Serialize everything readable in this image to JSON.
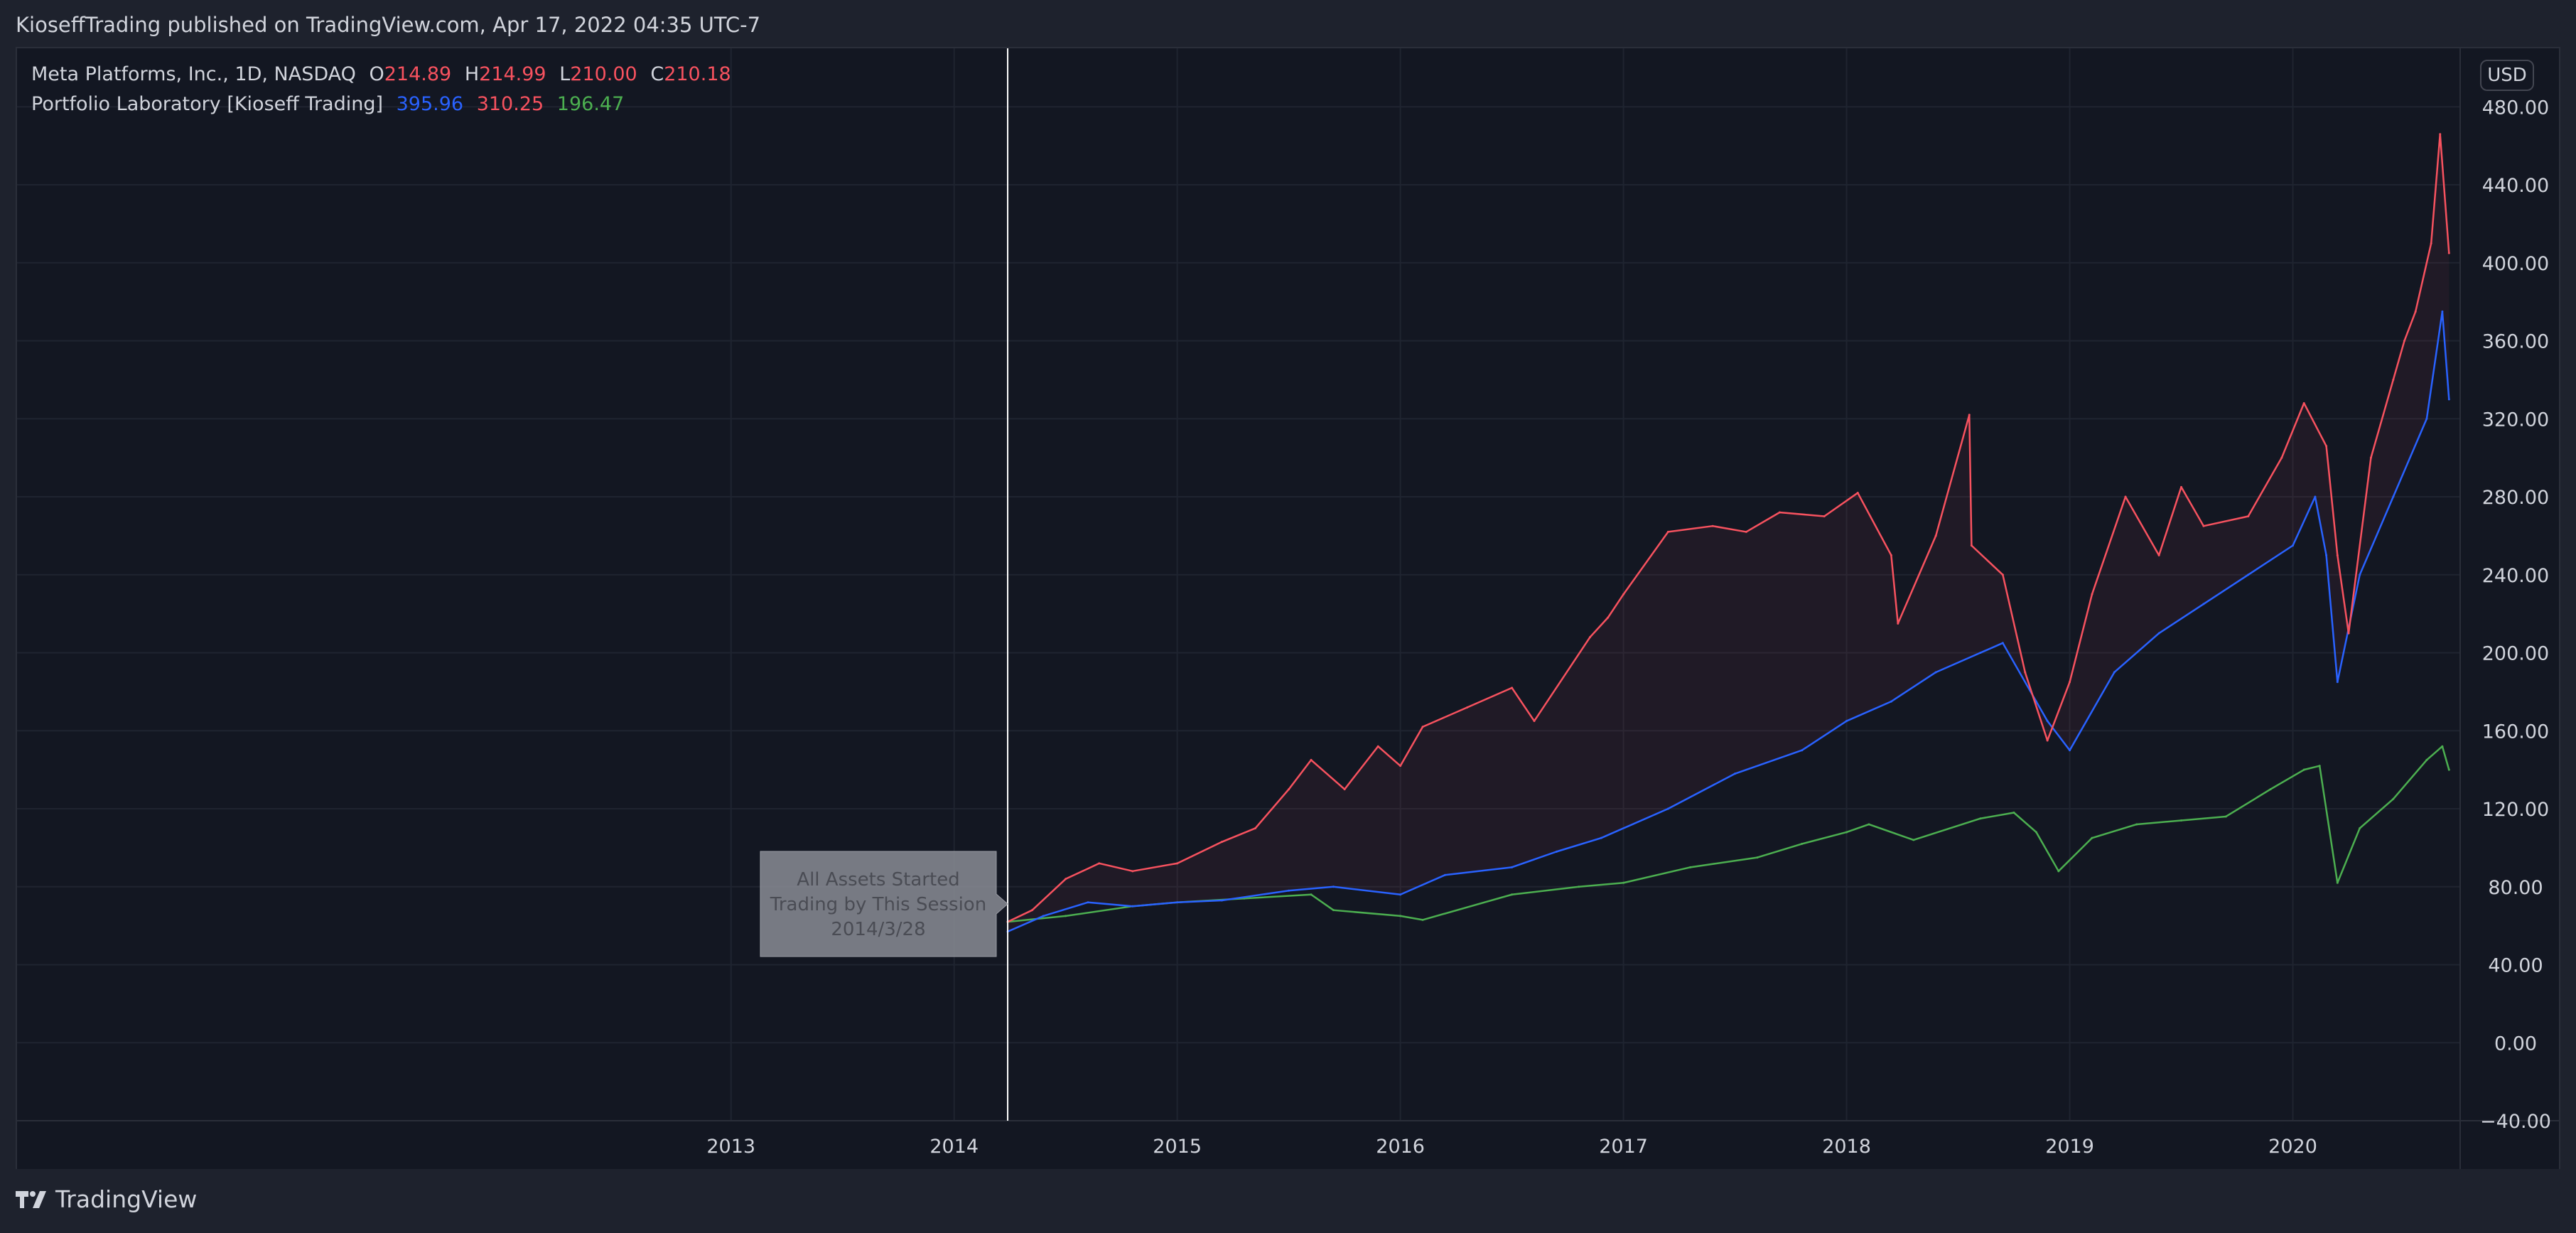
{
  "header": {
    "published_line": "KioseffTrading published on TradingView.com, Apr 17, 2022 04:35 UTC-7"
  },
  "legend": {
    "symbol_line": "Meta Platforms, Inc., 1D, NASDAQ",
    "open_label": "O",
    "open_value": "214.89",
    "high_label": "H",
    "high_value": "214.99",
    "low_label": "L",
    "low_value": "210.00",
    "close_label": "C",
    "close_value": "210.18",
    "indicator_name": "Portfolio Laboratory [Kioseff Trading]",
    "indicator_value_1": "395.96",
    "indicator_value_2": "310.25",
    "indicator_value_3": "196.47"
  },
  "currency_badge": "USD",
  "footer": {
    "brand": "TradingView"
  },
  "colors": {
    "background": "#131722",
    "grid": "#1f2430",
    "red_series": "#f7525f",
    "blue_series": "#2962ff",
    "green_series": "#4caf50",
    "vline": "#ffffff",
    "annotation_bg": "#8a8c94"
  },
  "chart_data": {
    "type": "line",
    "xlabel": "",
    "ylabel": "",
    "ylim": [
      -40,
      510
    ],
    "y_ticks": [
      -40,
      0,
      40,
      80,
      120,
      160,
      200,
      240,
      280,
      320,
      360,
      400,
      440,
      480
    ],
    "y_tick_labels": [
      "−40.00",
      "0.00",
      "40.00",
      "80.00",
      "120.00",
      "160.00",
      "200.00",
      "240.00",
      "280.00",
      "320.00",
      "360.00",
      "400.00",
      "440.00",
      "480.00"
    ],
    "x_range": [
      2009.8,
      2020.75
    ],
    "x_ticks": [
      2013,
      2014,
      2015,
      2016,
      2017,
      2018,
      2019,
      2020
    ],
    "x_tick_labels": [
      "2013",
      "2014",
      "2015",
      "2016",
      "2017",
      "2018",
      "2019",
      "2020"
    ],
    "grid": true,
    "series": [
      {
        "color": "#f7525f",
        "x": [
          2014.24,
          2014.35,
          2014.5,
          2014.65,
          2014.8,
          2015.0,
          2015.2,
          2015.35,
          2015.5,
          2015.6,
          2015.75,
          2015.9,
          2016.0,
          2016.1,
          2016.3,
          2016.5,
          2016.6,
          2016.85,
          2016.93,
          2017.0,
          2017.2,
          2017.4,
          2017.55,
          2017.7,
          2017.9,
          2018.05,
          2018.2,
          2018.23,
          2018.4,
          2018.55,
          2018.56,
          2018.7,
          2018.8,
          2018.9,
          2019.0,
          2019.1,
          2019.25,
          2019.4,
          2019.5,
          2019.6,
          2019.8,
          2019.95,
          2020.05,
          2020.15,
          2020.2,
          2020.25,
          2020.35,
          2020.45,
          2020.5,
          2020.55,
          2020.62,
          2020.66,
          2020.7
        ],
        "y": [
          62,
          68,
          84,
          92,
          88,
          92,
          103,
          110,
          130,
          145,
          130,
          152,
          142,
          162,
          172,
          182,
          165,
          208,
          218,
          230,
          262,
          265,
          262,
          272,
          270,
          282,
          250,
          215,
          260,
          322,
          255,
          240,
          190,
          155,
          185,
          230,
          280,
          250,
          285,
          265,
          270,
          300,
          328,
          306,
          250,
          210,
          300,
          340,
          360,
          375,
          410,
          466,
          405
        ]
      },
      {
        "color": "#2962ff",
        "x": [
          2014.24,
          2014.4,
          2014.6,
          2014.8,
          2015.0,
          2015.2,
          2015.5,
          2015.7,
          2016.0,
          2016.2,
          2016.5,
          2016.7,
          2016.9,
          2017.2,
          2017.5,
          2017.8,
          2018.0,
          2018.2,
          2018.4,
          2018.6,
          2018.7,
          2018.85,
          2018.9,
          2019.0,
          2019.2,
          2019.4,
          2019.6,
          2019.8,
          2020.0,
          2020.1,
          2020.15,
          2020.2,
          2020.3,
          2020.45,
          2020.6,
          2020.67,
          2020.7
        ],
        "y": [
          57,
          65,
          72,
          70,
          72,
          73,
          78,
          80,
          76,
          86,
          90,
          98,
          105,
          120,
          138,
          150,
          165,
          175,
          190,
          200,
          205,
          175,
          165,
          150,
          190,
          210,
          225,
          240,
          255,
          280,
          250,
          185,
          240,
          280,
          320,
          375,
          330
        ]
      },
      {
        "color": "#4caf50",
        "x": [
          2014.24,
          2014.5,
          2014.8,
          2015.0,
          2015.3,
          2015.6,
          2015.7,
          2016.0,
          2016.1,
          2016.5,
          2016.8,
          2017.0,
          2017.3,
          2017.6,
          2017.8,
          2018.0,
          2018.1,
          2018.3,
          2018.6,
          2018.75,
          2018.85,
          2018.95,
          2019.1,
          2019.3,
          2019.5,
          2019.7,
          2019.9,
          2020.05,
          2020.12,
          2020.2,
          2020.3,
          2020.45,
          2020.6,
          2020.67,
          2020.7
        ],
        "y": [
          62,
          65,
          70,
          72,
          74,
          76,
          68,
          65,
          63,
          76,
          80,
          82,
          90,
          95,
          102,
          108,
          112,
          104,
          115,
          118,
          108,
          88,
          105,
          112,
          114,
          116,
          130,
          140,
          142,
          82,
          110,
          125,
          145,
          152,
          140
        ]
      }
    ],
    "annotations": [
      {
        "text_line_1": "All Assets Started",
        "text_line_2": "Trading by This Session",
        "text_line_3": "2014/3/28",
        "x": 2014.24
      }
    ]
  }
}
